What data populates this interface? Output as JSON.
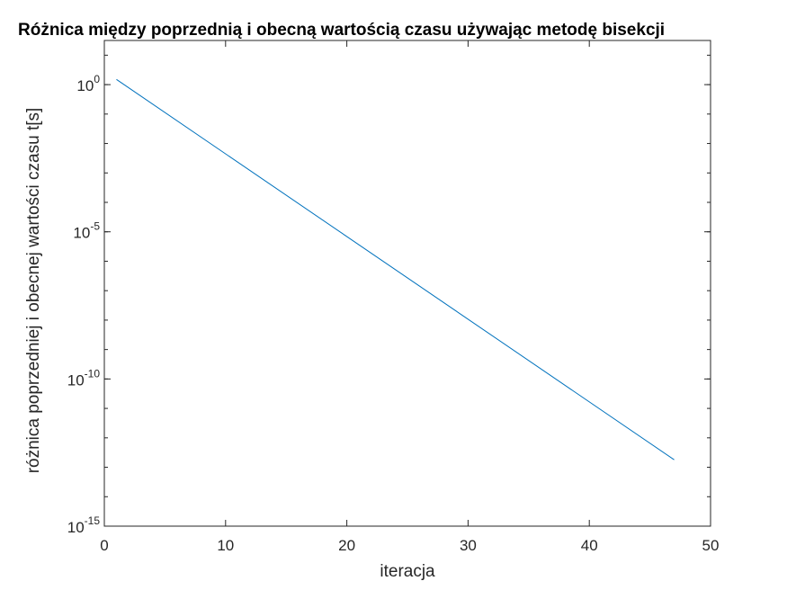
{
  "chart_data": {
    "type": "line",
    "title": "Różnica między poprzednią i obecną wartością czasu używając metodę bisekcji",
    "xlabel": "iteracja",
    "ylabel": "różnica poprzedniej i obecnej wartości czasu t[s]",
    "xlim": [
      0,
      50
    ],
    "ylim_log10": [
      -15,
      1.5
    ],
    "y_scale": "log",
    "grid": false,
    "x_ticks": [
      0,
      10,
      20,
      30,
      40,
      50
    ],
    "x_tick_labels": [
      "0",
      "10",
      "20",
      "30",
      "40",
      "50"
    ],
    "y_ticks_exponent": [
      0,
      -5,
      -10,
      -15
    ],
    "y_tick_base": "10",
    "y_tick_exponent_labels": [
      "0",
      "-5",
      "-10",
      "-15"
    ],
    "series": [
      {
        "color": "#0072BD",
        "x": [
          1,
          47
        ],
        "y": [
          1.5,
          1.8e-13
        ]
      }
    ]
  }
}
